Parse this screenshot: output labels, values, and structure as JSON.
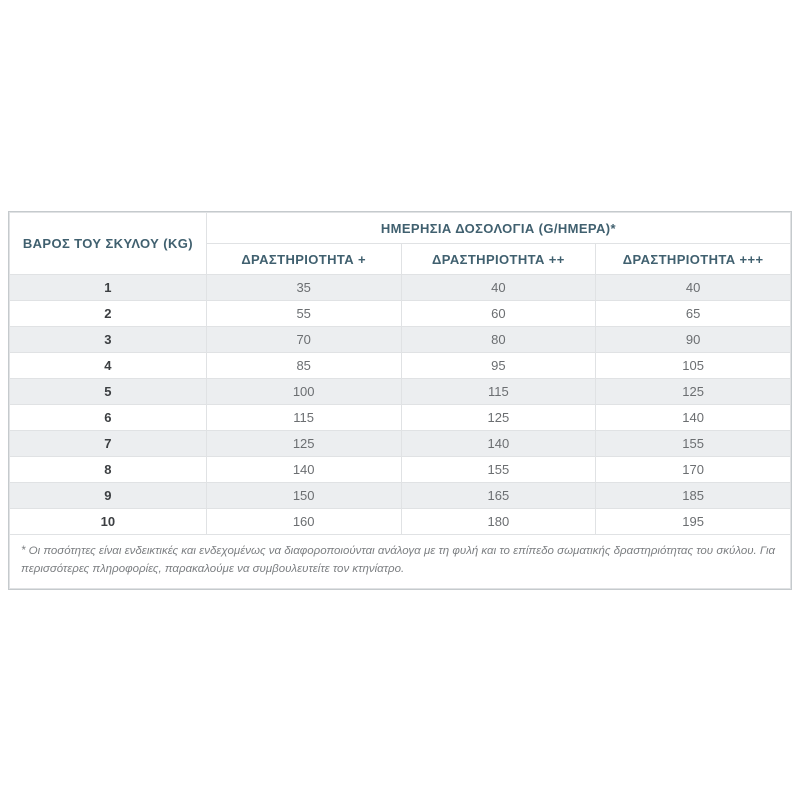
{
  "table": {
    "weight_header": "ΒΑΡΟΣ ΤΟΥ ΣΚΥΛΟΥ (KG)",
    "dosage_header": "ΗΜΕΡΗΣΙΑ ΔΟΣΟΛΟΓΙΑ (G/ΗΜΕΡΑ)*",
    "activity_columns": [
      "ΔΡΑΣΤΗΡΙΟΤΗΤΑ +",
      "ΔΡΑΣΤΗΡΙΟΤΗΤΑ ++",
      "ΔΡΑΣΤΗΡΙΟΤΗΤΑ +++"
    ],
    "rows": [
      {
        "weight": "1",
        "values": [
          "35",
          "40",
          "40"
        ]
      },
      {
        "weight": "2",
        "values": [
          "55",
          "60",
          "65"
        ]
      },
      {
        "weight": "3",
        "values": [
          "70",
          "80",
          "90"
        ]
      },
      {
        "weight": "4",
        "values": [
          "85",
          "95",
          "105"
        ]
      },
      {
        "weight": "5",
        "values": [
          "100",
          "115",
          "125"
        ]
      },
      {
        "weight": "6",
        "values": [
          "115",
          "125",
          "140"
        ]
      },
      {
        "weight": "7",
        "values": [
          "125",
          "140",
          "155"
        ]
      },
      {
        "weight": "8",
        "values": [
          "140",
          "155",
          "170"
        ]
      },
      {
        "weight": "9",
        "values": [
          "150",
          "165",
          "185"
        ]
      },
      {
        "weight": "10",
        "values": [
          "160",
          "180",
          "195"
        ]
      }
    ],
    "footnote": "* Οι ποσότητες είναι ενδεικτικές και ενδεχομένως να διαφοροποιούνται ανάλογα με τη φυλή και το επίπεδο σωματικής δραστηριότητας του σκύλου. Για περισσότερες πληροφορίες, παρακαλούμε να συμβουλευτείτε τον κτηνίατρο."
  },
  "colors": {
    "header_text": "#40606f",
    "row_stripe": "#eceef0",
    "value_text": "#6b6e71",
    "weight_text": "#3c3f42",
    "border": "#c5cacd",
    "footnote_text": "#7b7e81",
    "background": "#ffffff"
  }
}
